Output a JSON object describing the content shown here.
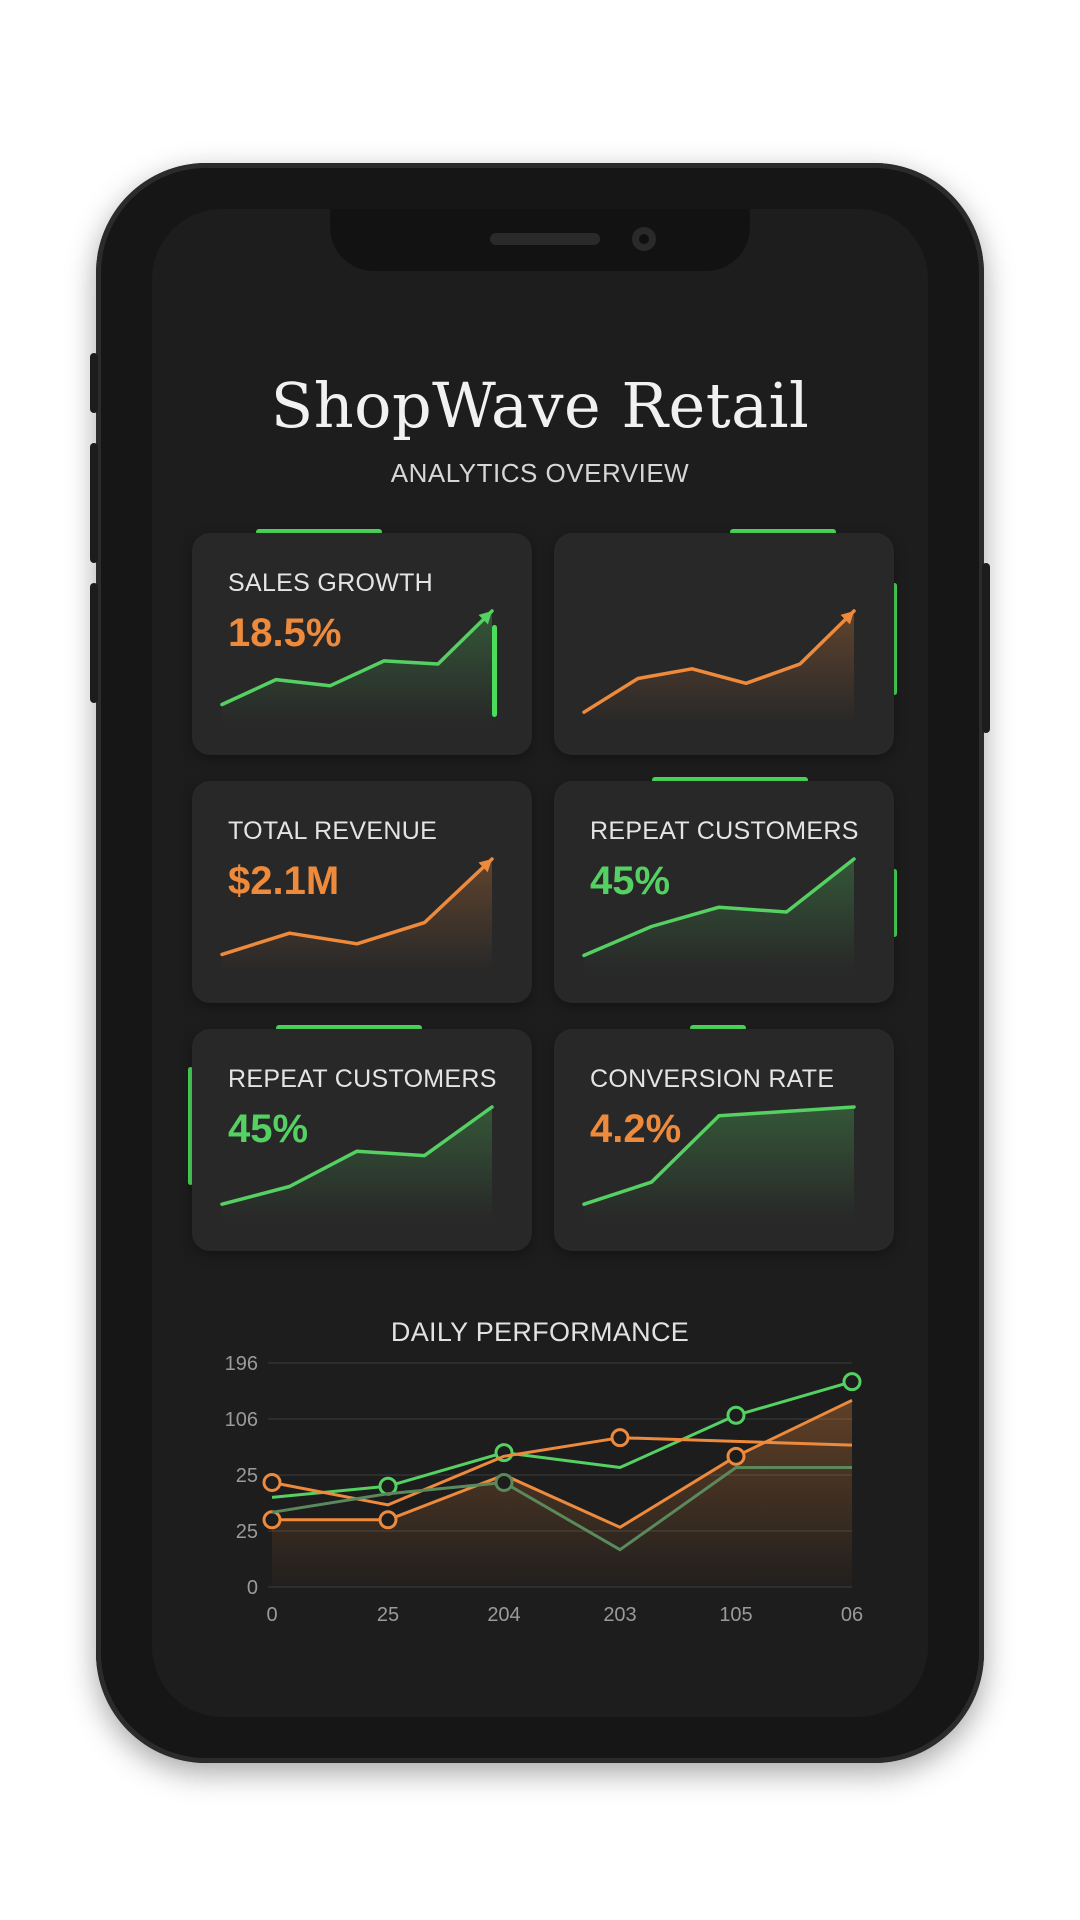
{
  "app": {
    "title": "ShopWave Retail",
    "subtitle": "ANALYTICS OVERVIEW"
  },
  "colors": {
    "accent_green": "#4cdc5c",
    "orange": "#ee8a3c",
    "green": "#55d062",
    "card_bg": "#282828",
    "screen_bg": "#1d1d1d"
  },
  "cards": [
    {
      "label": "SALES GROWTH",
      "value": "18.5%",
      "value_color": "orange",
      "trend": [
        2,
        6,
        5,
        9,
        8.5,
        17
      ],
      "line_color": "green",
      "arrow": true
    },
    {
      "label": "",
      "value": "",
      "value_color": "orange",
      "trend": [
        1,
        8,
        10,
        7,
        11,
        22
      ],
      "line_color": "orange",
      "arrow": true
    },
    {
      "label": "TOTAL REVENUE",
      "value": "$2.1M",
      "value_color": "orange",
      "trend": [
        2,
        6,
        4,
        8,
        20
      ],
      "line_color": "orange",
      "arrow": true
    },
    {
      "label": "REPEAT CUSTOMERS",
      "value": "45%",
      "value_color": "green",
      "trend": [
        1,
        4,
        6,
        5.5,
        11
      ],
      "line_color": "green",
      "arrow": false
    },
    {
      "label": "REPEAT CUSTOMERS",
      "value": "45%",
      "value_color": "green",
      "trend": [
        1,
        3,
        7,
        6.5,
        12
      ],
      "line_color": "green",
      "arrow": false
    },
    {
      "label": "CONVERSION RATE",
      "value": "4.2%",
      "value_color": "orange",
      "trend": [
        1,
        3.5,
        11,
        11.5,
        12
      ],
      "line_color": "green",
      "arrow": false
    }
  ],
  "chart_data": {
    "type": "line",
    "title": "DAILY PERFORMANCE",
    "x": [
      "0",
      "25",
      "204",
      "203",
      "105",
      "06"
    ],
    "y_ticks": [
      "0",
      "25",
      "25",
      "106",
      "196"
    ],
    "grid": true,
    "series": [
      {
        "values": [
          24,
          27,
          36,
          32,
          46,
          55
        ],
        "color": "#55d062",
        "markers": [
          1,
          2,
          4,
          5
        ]
      },
      {
        "values": [
          28,
          22,
          35,
          40,
          39,
          38
        ],
        "color": "#ee8a3c",
        "markers": [
          0,
          3
        ]
      },
      {
        "values": [
          18,
          18,
          30,
          16,
          35,
          50
        ],
        "color": "#ee8a3c",
        "markers": [
          0,
          1,
          4
        ],
        "fill": true
      },
      {
        "values": [
          20,
          25,
          28,
          10,
          32,
          32
        ],
        "color": "#5a8a5c",
        "markers": [
          2
        ]
      }
    ]
  }
}
